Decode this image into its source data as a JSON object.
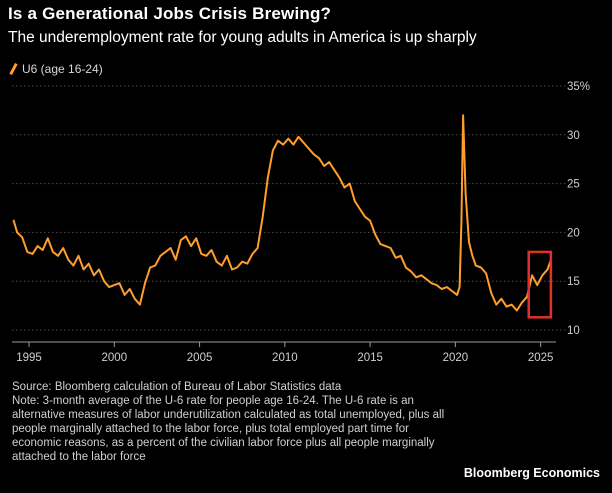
{
  "header": {
    "title": "Is a Generational Jobs Crisis Brewing?",
    "subtitle": "The underemployment rate for young adults in America is up sharply"
  },
  "legend": {
    "label": "U6 (age 16-24)"
  },
  "footer": {
    "source": "Source: Bloomberg calculation of Bureau of Labor Statistics data",
    "note": "Note: 3-month average of the U-6 rate for people age 16-24. The U-6 rate is an alternative measures of labor underutilization calculated as total unemployed, plus all people marginally attached to the labor force, plus total employed part time for economic reasons, as a percent of the civilian labor force plus all people marginally attached to the labor force",
    "brand": "Bloomberg Economics"
  },
  "colors": {
    "line": "#ff9e2c",
    "highlight": "#e0302a",
    "grid": "#4a4a4a",
    "background": "#000000"
  },
  "chart_data": {
    "type": "line",
    "title": "Is a Generational Jobs Crisis Brewing?",
    "subtitle": "The underemployment rate for young adults in America is up sharply",
    "xlim": [
      1994.0,
      2025.9
    ],
    "ylim": [
      10,
      35
    ],
    "x_ticks": [
      1995,
      2000,
      2005,
      2010,
      2015,
      2020,
      2025
    ],
    "y_ticks": [
      10,
      15,
      20,
      25,
      30,
      35
    ],
    "y_tick_labels": [
      "10",
      "15",
      "20",
      "25",
      "30",
      "35%"
    ],
    "grid": true,
    "legend_position": "top-left",
    "highlight_box": {
      "x_range": [
        2024.3,
        2025.6
      ],
      "y_range": [
        11.3,
        18.0
      ]
    },
    "series": [
      {
        "name": "U6 (age 16-24)",
        "x": [
          1994.1,
          1994.3,
          1994.6,
          1994.9,
          1995.2,
          1995.5,
          1995.8,
          1996.1,
          1996.4,
          1996.7,
          1997.0,
          1997.3,
          1997.6,
          1997.9,
          1998.2,
          1998.5,
          1998.8,
          1999.1,
          1999.4,
          1999.7,
          2000.0,
          2000.3,
          2000.6,
          2000.9,
          2001.2,
          2001.5,
          2001.8,
          2002.1,
          2002.4,
          2002.7,
          2003.0,
          2003.3,
          2003.6,
          2003.9,
          2004.2,
          2004.5,
          2004.8,
          2005.1,
          2005.4,
          2005.7,
          2006.0,
          2006.3,
          2006.6,
          2006.9,
          2007.2,
          2007.5,
          2007.8,
          2008.1,
          2008.4,
          2008.7,
          2009.0,
          2009.3,
          2009.6,
          2009.9,
          2010.2,
          2010.5,
          2010.8,
          2011.1,
          2011.4,
          2011.7,
          2012.0,
          2012.3,
          2012.6,
          2012.9,
          2013.2,
          2013.5,
          2013.8,
          2014.1,
          2014.4,
          2014.7,
          2015.0,
          2015.3,
          2015.6,
          2015.9,
          2016.2,
          2016.5,
          2016.8,
          2017.1,
          2017.4,
          2017.7,
          2018.0,
          2018.3,
          2018.6,
          2018.9,
          2019.2,
          2019.5,
          2019.8,
          2020.1,
          2020.25,
          2020.35,
          2020.45,
          2020.6,
          2020.8,
          2021.0,
          2021.2,
          2021.5,
          2021.8,
          2022.1,
          2022.4,
          2022.7,
          2023.0,
          2023.3,
          2023.6,
          2023.9,
          2024.2,
          2024.5,
          2024.8,
          2025.1,
          2025.4,
          2025.6
        ],
        "values": [
          21.2,
          20.0,
          19.5,
          18.0,
          17.8,
          18.6,
          18.2,
          19.4,
          18.0,
          17.6,
          18.4,
          17.2,
          16.6,
          17.6,
          16.2,
          16.8,
          15.6,
          16.2,
          15.0,
          14.4,
          14.6,
          14.8,
          13.6,
          14.2,
          13.2,
          12.6,
          14.8,
          16.4,
          16.6,
          17.6,
          18.0,
          18.4,
          17.2,
          19.2,
          19.6,
          18.6,
          19.4,
          17.8,
          17.6,
          18.2,
          17.0,
          16.6,
          17.6,
          16.2,
          16.4,
          17.0,
          16.8,
          17.8,
          18.4,
          21.6,
          25.6,
          28.4,
          29.4,
          29.0,
          29.6,
          29.0,
          29.8,
          29.2,
          28.6,
          28.0,
          27.6,
          26.8,
          27.2,
          26.4,
          25.6,
          24.6,
          25.0,
          23.2,
          22.4,
          21.6,
          21.2,
          19.8,
          18.8,
          18.6,
          18.4,
          17.4,
          17.6,
          16.4,
          16.0,
          15.4,
          15.6,
          15.2,
          14.8,
          14.6,
          14.2,
          14.4,
          14.0,
          13.6,
          14.4,
          21.0,
          32.0,
          24.0,
          19.0,
          17.6,
          16.6,
          16.4,
          15.8,
          13.8,
          12.6,
          13.2,
          12.4,
          12.6,
          12.0,
          12.8,
          13.4,
          15.6,
          14.6,
          15.6,
          16.2,
          17.2
        ]
      }
    ]
  }
}
